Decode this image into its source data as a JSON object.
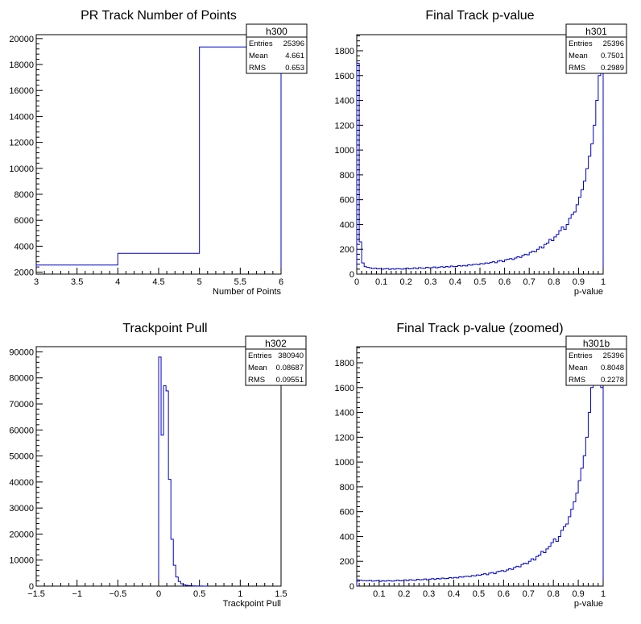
{
  "chart_data": [
    {
      "type": "histogram",
      "title": "PR Track Number of Points",
      "xlabel": "Number of Points",
      "xlim": [
        3,
        6
      ],
      "ylim": [
        1850,
        20300
      ],
      "xticks": [
        "3",
        "3.5",
        "4",
        "4.5",
        "5",
        "5.5",
        "6"
      ],
      "yticks": [
        "2000",
        "4000",
        "6000",
        "8000",
        "10000",
        "12000",
        "14000",
        "16000",
        "18000",
        "20000"
      ],
      "bins": [
        {
          "x0": 3,
          "x1": 4,
          "value": 2550
        },
        {
          "x0": 4,
          "x1": 5,
          "value": 3450
        },
        {
          "x0": 5,
          "x1": 6,
          "value": 19350
        }
      ],
      "stats": {
        "name": "h300",
        "rows": [
          {
            "label": "Entries",
            "value": "25396"
          },
          {
            "label": "Mean",
            "value": "4.661"
          },
          {
            "label": "RMS",
            "value": "0.653"
          }
        ]
      }
    },
    {
      "type": "histogram",
      "title": "Final Track p-value",
      "xlabel": "p-value",
      "xlim": [
        0,
        1
      ],
      "ylim": [
        0,
        1930
      ],
      "xticks": [
        "0",
        "0.1",
        "0.2",
        "0.3",
        "0.4",
        "0.5",
        "0.6",
        "0.7",
        "0.8",
        "0.9",
        "1"
      ],
      "yticks": [
        "0",
        "200",
        "400",
        "600",
        "800",
        "1000",
        "1200",
        "1400",
        "1600",
        "1800"
      ],
      "bin_start": 0,
      "bin_width": 0.01,
      "values": [
        1700,
        260,
        90,
        60,
        55,
        50,
        45,
        48,
        42,
        45,
        40,
        42,
        45,
        38,
        44,
        40,
        45,
        42,
        40,
        44,
        48,
        42,
        45,
        50,
        44,
        52,
        48,
        46,
        55,
        50,
        52,
        58,
        50,
        56,
        60,
        55,
        62,
        58,
        65,
        60,
        62,
        68,
        65,
        70,
        66,
        75,
        72,
        78,
        80,
        76,
        85,
        82,
        90,
        88,
        95,
        100,
        92,
        105,
        110,
        100,
        115,
        120,
        125,
        118,
        130,
        140,
        135,
        150,
        160,
        155,
        175,
        185,
        180,
        200,
        220,
        210,
        240,
        250,
        280,
        270,
        300,
        320,
        350,
        380,
        360,
        400,
        450,
        480,
        500,
        560,
        620,
        680,
        750,
        850,
        950,
        1050,
        1200,
        1400,
        1600,
        1650
      ],
      "stats": {
        "name": "h301",
        "rows": [
          {
            "label": "Entries",
            "value": "25396"
          },
          {
            "label": "Mean",
            "value": "0.7501"
          },
          {
            "label": "RMS",
            "value": "0.2989"
          }
        ]
      }
    },
    {
      "type": "histogram",
      "title": "Trackpoint Pull",
      "xlabel": "Trackpoint Pull",
      "xlim": [
        -1.5,
        1.5
      ],
      "ylim": [
        0,
        92000
      ],
      "xticks": [
        "−1.5",
        "−1",
        "−0.5",
        "0",
        "0.5",
        "1",
        "1.5"
      ],
      "yticks": [
        "0",
        "10000",
        "20000",
        "30000",
        "40000",
        "50000",
        "60000",
        "70000",
        "80000",
        "90000"
      ],
      "bin_start": 0,
      "bin_width": 0.03,
      "values": [
        88000,
        58000,
        77000,
        75000,
        41000,
        18000,
        8000,
        3500,
        1800,
        900,
        500,
        300,
        200,
        120,
        80,
        50,
        30,
        20,
        15,
        10
      ],
      "stats": {
        "name": "h302",
        "rows": [
          {
            "label": "Entries",
            "value": "380940"
          },
          {
            "label": "Mean",
            "value": "0.08687"
          },
          {
            "label": "RMS",
            "value": "0.09551"
          }
        ]
      }
    },
    {
      "type": "histogram",
      "title": "Final Track p-value (zoomed)",
      "xlabel": "p-value",
      "xlim": [
        0.01,
        1
      ],
      "ylim": [
        0,
        1930
      ],
      "xticks": [
        "0.1",
        "0.2",
        "0.3",
        "0.4",
        "0.5",
        "0.6",
        "0.7",
        "0.8",
        "0.9",
        "1"
      ],
      "yticks": [
        "0",
        "200",
        "400",
        "600",
        "800",
        "1000",
        "1200",
        "1400",
        "1600",
        "1800"
      ],
      "bin_start": 0.01,
      "bin_width": 0.01,
      "values": [
        50,
        48,
        45,
        44,
        42,
        46,
        40,
        42,
        45,
        38,
        44,
        40,
        45,
        42,
        40,
        44,
        48,
        42,
        45,
        50,
        44,
        52,
        48,
        46,
        55,
        50,
        52,
        58,
        50,
        56,
        60,
        55,
        62,
        58,
        65,
        60,
        62,
        68,
        65,
        70,
        66,
        75,
        72,
        78,
        80,
        76,
        85,
        82,
        90,
        88,
        95,
        100,
        92,
        105,
        110,
        100,
        115,
        120,
        125,
        118,
        130,
        140,
        135,
        150,
        160,
        155,
        175,
        185,
        180,
        200,
        220,
        210,
        240,
        250,
        280,
        270,
        300,
        320,
        350,
        380,
        360,
        400,
        450,
        480,
        500,
        560,
        620,
        680,
        750,
        850,
        950,
        1050,
        1200,
        1400,
        1600,
        1650,
        1700,
        1750,
        1600
      ],
      "stats": {
        "name": "h301b",
        "rows": [
          {
            "label": "Entries",
            "value": "25396"
          },
          {
            "label": "Mean",
            "value": "0.8048"
          },
          {
            "label": "RMS",
            "value": "0.2278"
          }
        ]
      }
    }
  ]
}
